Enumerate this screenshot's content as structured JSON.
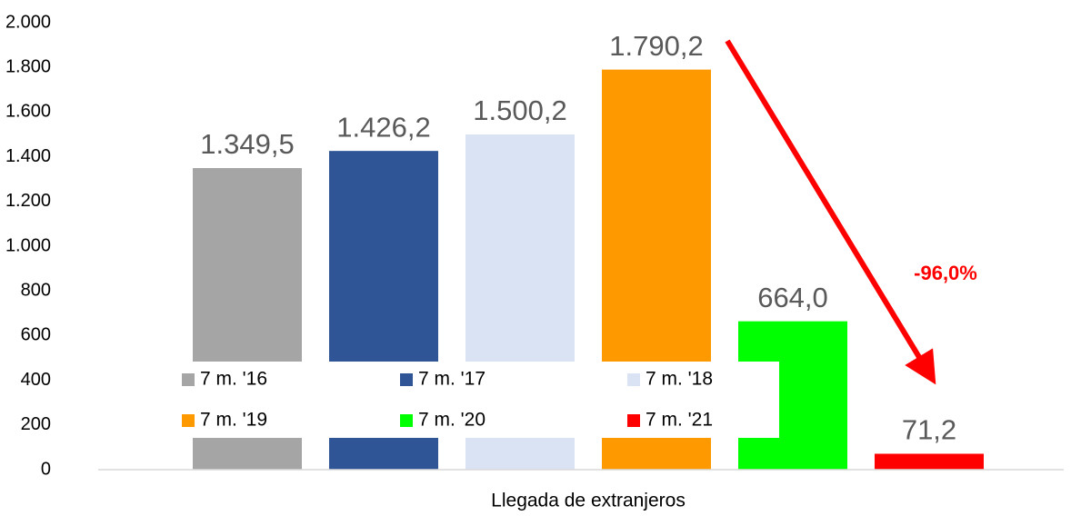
{
  "chart_data": {
    "type": "bar",
    "categories": [
      "Llegada de extranjeros"
    ],
    "series": [
      {
        "name": "7 m. '16",
        "color": "#a5a5a5",
        "values": [
          1349.5
        ],
        "value_labels": [
          "1.349,5"
        ]
      },
      {
        "name": "7 m. '17",
        "color": "#2f5597",
        "values": [
          1426.2
        ],
        "value_labels": [
          "1.426,2"
        ]
      },
      {
        "name": "7 m. '18",
        "color": "#dae3f3",
        "values": [
          1500.2
        ],
        "value_labels": [
          "1.500,2"
        ]
      },
      {
        "name": "7 m. '19",
        "color": "#ff9900",
        "values": [
          1790.2
        ],
        "value_labels": [
          "1.790,2"
        ]
      },
      {
        "name": "7 m. '20",
        "color": "#00ff00",
        "values": [
          664.0
        ],
        "value_labels": [
          "664,0"
        ]
      },
      {
        "name": "7 m. '21",
        "color": "#ff0000",
        "values": [
          71.2
        ],
        "value_labels": [
          "71,2"
        ]
      }
    ],
    "ylim": [
      0,
      2000
    ],
    "yticks": [
      0,
      200,
      400,
      600,
      800,
      {
        "value": 1000,
        "label": "1.000"
      },
      {
        "value": 1200,
        "label": "1.200"
      },
      {
        "value": 1400,
        "label": "1.400"
      },
      {
        "value": 1600,
        "label": "1.600"
      },
      {
        "value": 1800,
        "label": "1.800"
      },
      {
        "value": 2000,
        "label": "2.000"
      }
    ],
    "annotation": "-96,0%",
    "grid": false
  }
}
